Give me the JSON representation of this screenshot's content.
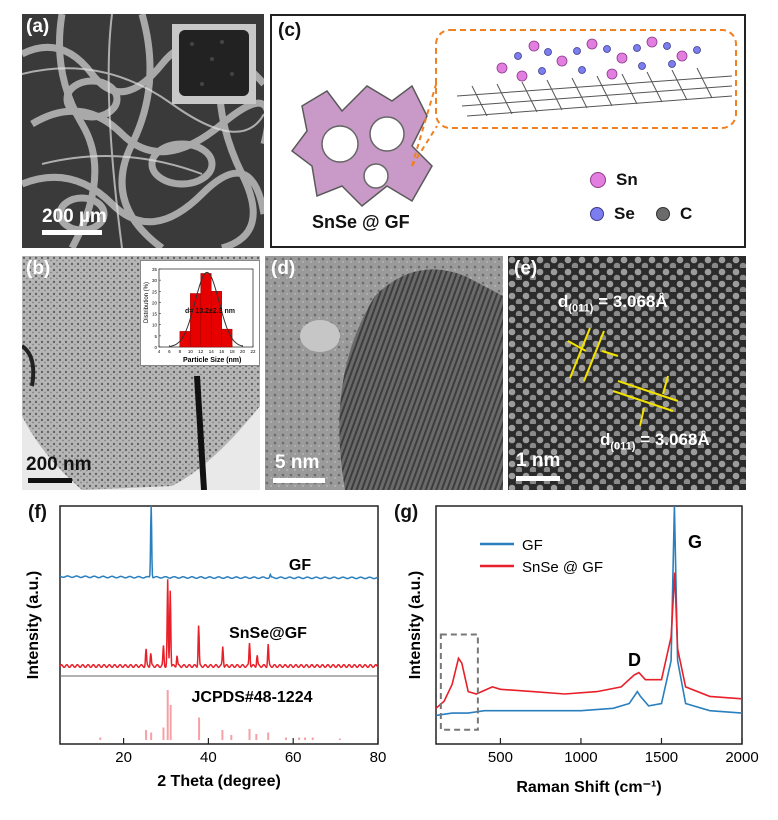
{
  "panels": {
    "a": {
      "label": "(a)",
      "scale": "200 µm"
    },
    "b": {
      "label": "(b)",
      "scale": "200 nm",
      "inset": {
        "ylabel": "Distribution (%)",
        "xlabel": "Particle Size (nm)",
        "annotation": "d= 13.2±2.3 nm",
        "yticks": [
          "0",
          "5",
          "10",
          "15",
          "20",
          "25",
          "30",
          "35"
        ],
        "xticks": [
          "4",
          "6",
          "8",
          "10",
          "12",
          "14",
          "16",
          "18",
          "20",
          "22"
        ]
      }
    },
    "c": {
      "label": "(c)",
      "caption": "SnSe @ GF",
      "legend": [
        {
          "name": "Sn",
          "color": "#e27ee0"
        },
        {
          "name": "Se",
          "color": "#7c7ef0"
        },
        {
          "name": "C",
          "color": "#6b6b6b"
        }
      ]
    },
    "d": {
      "label": "(d)",
      "scale": "5 nm"
    },
    "e": {
      "label": "(e)",
      "scale": "1 nm",
      "d1": "d",
      "d1_sub": "(011)",
      "d1_value": " = 3.068Å",
      "d2": "d",
      "d2_sub": "(011̄)",
      "d2_value": " = 3.068Å"
    },
    "f": {
      "label": "(f)"
    },
    "g": {
      "label": "(g)"
    }
  },
  "chart_data": [
    {
      "type": "bar",
      "panel": "b-inset",
      "xlabel": "Particle Size (nm)",
      "ylabel": "Distribution (%)",
      "categories": [
        "9",
        "11",
        "13",
        "15",
        "17"
      ],
      "values": [
        7,
        24,
        33,
        25,
        8
      ],
      "xlim": [
        4,
        22
      ],
      "ylim": [
        0,
        35
      ],
      "annotation": "d= 13.2±2.3 nm",
      "fit": "gaussian",
      "colors": {
        "bar": "#e60000",
        "fit": "#333333"
      }
    },
    {
      "type": "line",
      "panel": "f",
      "xlabel": "2 Theta (degree)",
      "ylabel": "Intensity (a.u.)",
      "xlim": [
        5,
        80
      ],
      "xticks": [
        "20",
        "40",
        "60",
        "80"
      ],
      "series": [
        {
          "name": "GF",
          "color": "#2a7fbf",
          "peaks": [
            [
              26.5,
              1.0
            ],
            [
              54.6,
              0.04
            ]
          ]
        },
        {
          "name": "SnSe@GF",
          "color": "#e8202a",
          "peaks": [
            [
              25.3,
              0.18
            ],
            [
              26.4,
              0.14
            ],
            [
              29.4,
              0.22
            ],
            [
              30.4,
              0.95
            ],
            [
              31.0,
              0.85
            ],
            [
              32.6,
              0.12
            ],
            [
              37.7,
              0.45
            ],
            [
              43.4,
              0.22
            ],
            [
              49.7,
              0.26
            ],
            [
              51.5,
              0.12
            ],
            [
              54.1,
              0.24
            ]
          ]
        },
        {
          "name": "JCPDS#48-1224",
          "color": "#f5a0a6",
          "peaks": [
            [
              14.5,
              0.05
            ],
            [
              25.3,
              0.2
            ],
            [
              26.5,
              0.15
            ],
            [
              29.4,
              0.25
            ],
            [
              30.4,
              1.0
            ],
            [
              31.1,
              0.7
            ],
            [
              37.8,
              0.45
            ],
            [
              43.3,
              0.2
            ],
            [
              45.4,
              0.1
            ],
            [
              49.7,
              0.22
            ],
            [
              51.3,
              0.12
            ],
            [
              54.1,
              0.15
            ],
            [
              58.3,
              0.05
            ],
            [
              61.4,
              0.05
            ],
            [
              62.8,
              0.05
            ],
            [
              64.6,
              0.05
            ],
            [
              71.0,
              0.03
            ]
          ]
        }
      ]
    },
    {
      "type": "line",
      "panel": "g",
      "xlabel": "Raman Shift (cm⁻¹)",
      "ylabel": "Intensity (a.u.)",
      "xlim": [
        100,
        2000
      ],
      "xticks": [
        "500",
        "1000",
        "1500",
        "2000"
      ],
      "legend": "top-left",
      "annotations": [
        "G",
        "D"
      ],
      "series": [
        {
          "name": "GF",
          "color": "#2a7fbf",
          "x": [
            100,
            200,
            300,
            400,
            600,
            800,
            1000,
            1200,
            1300,
            1350,
            1370,
            1420,
            1500,
            1560,
            1580,
            1600,
            1650,
            1800,
            2000
          ],
          "y": [
            0.12,
            0.13,
            0.13,
            0.14,
            0.14,
            0.14,
            0.14,
            0.15,
            0.17,
            0.22,
            0.2,
            0.16,
            0.17,
            0.35,
            1.0,
            0.35,
            0.17,
            0.14,
            0.13
          ]
        },
        {
          "name": "SnSe @ GF",
          "color": "#e8202a",
          "x": [
            100,
            150,
            200,
            240,
            260,
            300,
            350,
            450,
            500,
            700,
            900,
            1100,
            1250,
            1330,
            1360,
            1400,
            1500,
            1560,
            1582,
            1600,
            1650,
            1800,
            2000
          ],
          "y": [
            0.15,
            0.18,
            0.25,
            0.36,
            0.34,
            0.22,
            0.21,
            0.24,
            0.23,
            0.22,
            0.21,
            0.22,
            0.24,
            0.29,
            0.3,
            0.27,
            0.27,
            0.45,
            0.72,
            0.4,
            0.24,
            0.2,
            0.19
          ]
        }
      ]
    }
  ]
}
